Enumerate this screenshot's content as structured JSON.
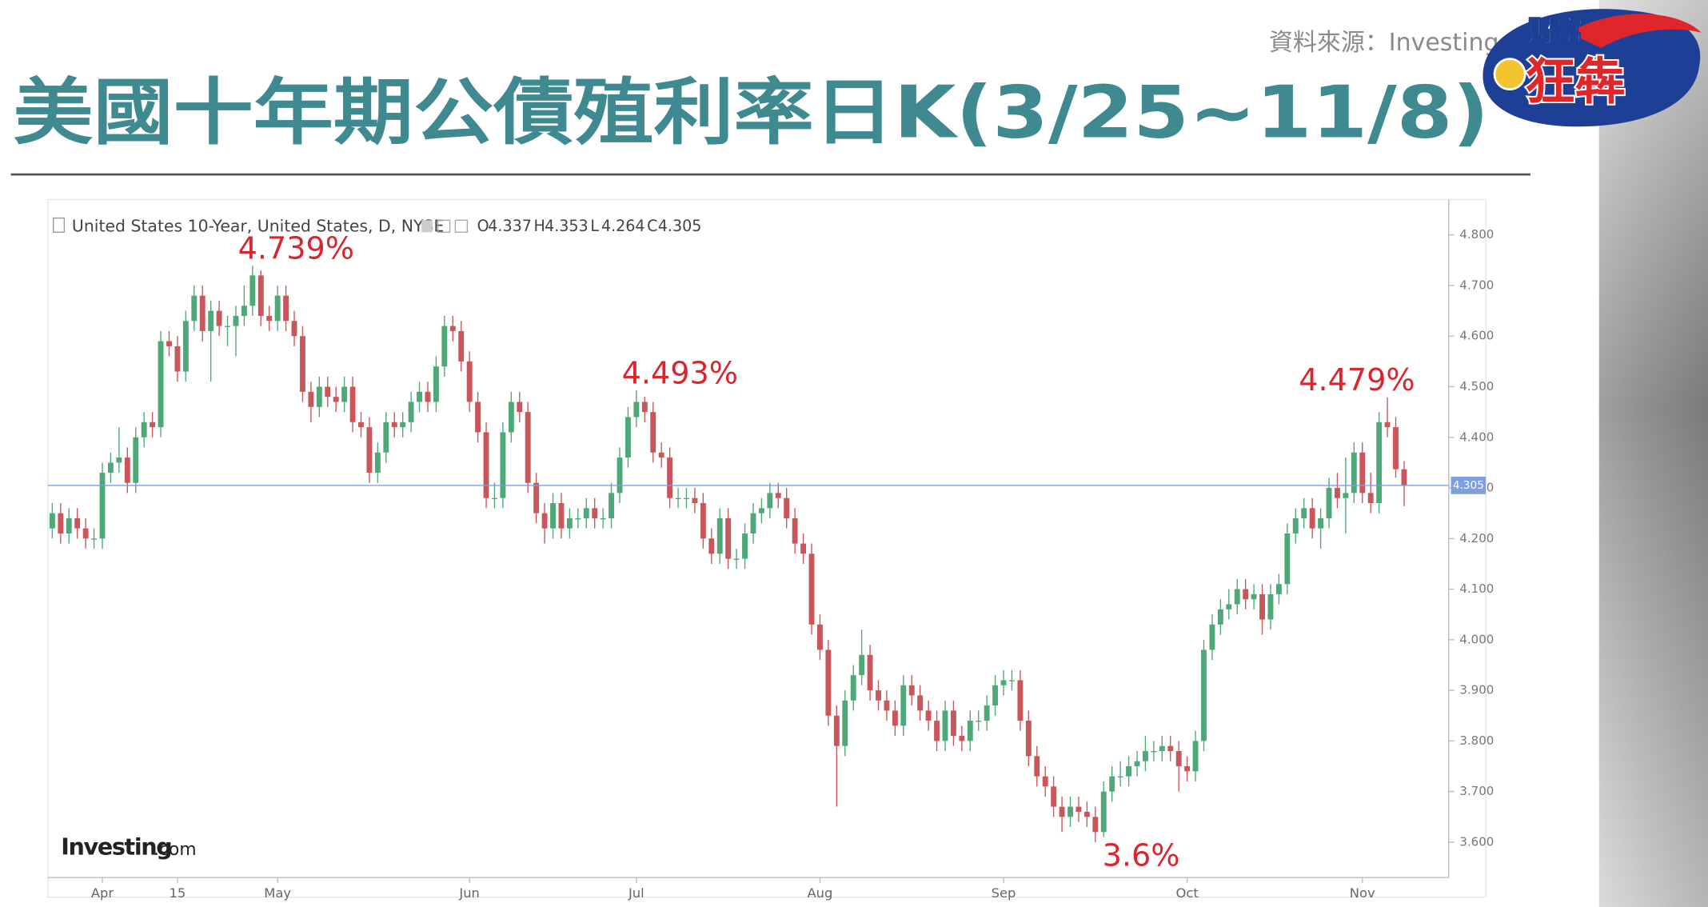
{
  "chart_data": {
    "type": "candlestick",
    "title": "美國十年期公債殖利率日K(3/25~11/8)",
    "source": "資料來源：Investing.com",
    "logo": {
      "top": "財富",
      "bottom": "狂犇"
    },
    "instrument": "United States 10-Year, United States, D, NYSE",
    "ohlc_prefixes": [
      "O",
      "H",
      "L",
      "C"
    ],
    "watermark": {
      "brand": "Investing",
      "suffix": ".com"
    },
    "up_color": "#4fa877",
    "down_color": "#c9565a",
    "price_line_color": "#7d9fe0",
    "annotation_color": "#d9252e",
    "ylim": [
      3.53,
      4.87
    ],
    "yticks": [
      {
        "value": 3.6,
        "label": "3.600"
      },
      {
        "value": 3.7,
        "label": "3.700"
      },
      {
        "value": 3.8,
        "label": "3.800"
      },
      {
        "value": 3.9,
        "label": "3.900"
      },
      {
        "value": 4.0,
        "label": "4.000"
      },
      {
        "value": 4.1,
        "label": "4.100"
      },
      {
        "value": 4.2,
        "label": "4.200"
      },
      {
        "value": 4.3,
        "label": "4.300"
      },
      {
        "value": 4.4,
        "label": "4.400"
      },
      {
        "value": 4.5,
        "label": "4.500"
      },
      {
        "value": 4.6,
        "label": "4.600"
      },
      {
        "value": 4.7,
        "label": "4.700"
      },
      {
        "value": 4.8,
        "label": "4.800"
      }
    ],
    "annotations": [
      {
        "label": "4.739%",
        "value": 4.739,
        "at": "high"
      },
      {
        "label": "4.493%",
        "value": 4.493,
        "at": "high"
      },
      {
        "label": "3.6%",
        "value": 3.6,
        "at": "low"
      },
      {
        "label": "4.479%",
        "value": 4.479,
        "at": "high"
      }
    ],
    "categories": [
      null,
      null,
      null,
      null,
      null,
      null,
      "Apr",
      null,
      null,
      null,
      null,
      null,
      null,
      null,
      null,
      "15",
      null,
      null,
      null,
      null,
      null,
      null,
      null,
      null,
      null,
      null,
      null,
      "May",
      null,
      null,
      null,
      null,
      null,
      null,
      null,
      null,
      null,
      null,
      null,
      null,
      null,
      null,
      null,
      null,
      null,
      null,
      null,
      null,
      null,
      null,
      "Jun",
      null,
      null,
      null,
      null,
      null,
      null,
      null,
      null,
      null,
      null,
      null,
      null,
      null,
      null,
      null,
      null,
      null,
      null,
      null,
      "Jul",
      null,
      null,
      null,
      null,
      null,
      null,
      null,
      null,
      null,
      null,
      null,
      null,
      null,
      null,
      null,
      null,
      null,
      null,
      null,
      null,
      null,
      "Aug",
      null,
      null,
      null,
      null,
      null,
      null,
      null,
      null,
      null,
      null,
      null,
      null,
      null,
      null,
      null,
      null,
      null,
      null,
      null,
      null,
      null,
      "Sep",
      null,
      null,
      null,
      null,
      null,
      null,
      null,
      null,
      null,
      null,
      null,
      null,
      null,
      null,
      null,
      null,
      null,
      null,
      null,
      null,
      null,
      "Oct",
      null,
      null,
      null,
      null,
      null,
      null,
      null,
      null,
      null,
      null,
      null,
      null,
      null,
      null,
      null,
      null,
      null,
      null,
      null,
      null,
      "Nov",
      null,
      null,
      null,
      null,
      null
    ],
    "series": [
      {
        "name": "United States 10-Year",
        "values": [
          [
            4.22,
            4.27,
            4.2,
            4.25
          ],
          [
            4.25,
            4.27,
            4.19,
            4.21
          ],
          [
            4.21,
            4.26,
            4.19,
            4.24
          ],
          [
            4.24,
            4.26,
            4.2,
            4.22
          ],
          [
            4.22,
            4.24,
            4.18,
            4.2
          ],
          [
            4.2,
            4.22,
            4.18,
            4.2
          ],
          [
            4.2,
            4.35,
            4.18,
            4.33
          ],
          [
            4.33,
            4.37,
            4.31,
            4.35
          ],
          [
            4.35,
            4.42,
            4.33,
            4.36
          ],
          [
            4.36,
            4.38,
            4.29,
            4.31
          ],
          [
            4.31,
            4.42,
            4.29,
            4.4
          ],
          [
            4.4,
            4.45,
            4.38,
            4.43
          ],
          [
            4.43,
            4.45,
            4.4,
            4.42
          ],
          [
            4.42,
            4.61,
            4.4,
            4.59
          ],
          [
            4.59,
            4.61,
            4.56,
            4.58
          ],
          [
            4.58,
            4.6,
            4.51,
            4.53
          ],
          [
            4.53,
            4.65,
            4.51,
            4.63
          ],
          [
            4.63,
            4.7,
            4.61,
            4.68
          ],
          [
            4.68,
            4.7,
            4.59,
            4.61
          ],
          [
            4.61,
            4.67,
            4.51,
            4.65
          ],
          [
            4.65,
            4.67,
            4.6,
            4.62
          ],
          [
            4.62,
            4.64,
            4.58,
            4.62
          ],
          [
            4.62,
            4.66,
            4.56,
            4.64
          ],
          [
            4.64,
            4.7,
            4.62,
            4.66
          ],
          [
            4.66,
            4.739,
            4.64,
            4.72
          ],
          [
            4.72,
            4.73,
            4.62,
            4.64
          ],
          [
            4.64,
            4.66,
            4.61,
            4.63
          ],
          [
            4.63,
            4.7,
            4.61,
            4.68
          ],
          [
            4.68,
            4.7,
            4.61,
            4.63
          ],
          [
            4.63,
            4.65,
            4.58,
            4.6
          ],
          [
            4.6,
            4.62,
            4.47,
            4.49
          ],
          [
            4.49,
            4.51,
            4.43,
            4.46
          ],
          [
            4.46,
            4.52,
            4.44,
            4.5
          ],
          [
            4.5,
            4.52,
            4.46,
            4.48
          ],
          [
            4.48,
            4.5,
            4.45,
            4.47
          ],
          [
            4.47,
            4.52,
            4.45,
            4.5
          ],
          [
            4.5,
            4.52,
            4.41,
            4.43
          ],
          [
            4.43,
            4.45,
            4.4,
            4.42
          ],
          [
            4.42,
            4.44,
            4.31,
            4.33
          ],
          [
            4.33,
            4.39,
            4.31,
            4.37
          ],
          [
            4.37,
            4.45,
            4.35,
            4.43
          ],
          [
            4.43,
            4.45,
            4.4,
            4.42
          ],
          [
            4.42,
            4.45,
            4.4,
            4.43
          ],
          [
            4.43,
            4.49,
            4.41,
            4.47
          ],
          [
            4.47,
            4.51,
            4.45,
            4.49
          ],
          [
            4.49,
            4.51,
            4.45,
            4.47
          ],
          [
            4.47,
            4.56,
            4.45,
            4.54
          ],
          [
            4.54,
            4.64,
            4.52,
            4.62
          ],
          [
            4.62,
            4.64,
            4.59,
            4.61
          ],
          [
            4.61,
            4.63,
            4.53,
            4.55
          ],
          [
            4.55,
            4.57,
            4.45,
            4.47
          ],
          [
            4.47,
            4.49,
            4.39,
            4.41
          ],
          [
            4.41,
            4.43,
            4.26,
            4.28
          ],
          [
            4.28,
            4.31,
            4.26,
            4.28
          ],
          [
            4.28,
            4.43,
            4.26,
            4.41
          ],
          [
            4.41,
            4.49,
            4.39,
            4.47
          ],
          [
            4.47,
            4.49,
            4.43,
            4.45
          ],
          [
            4.45,
            4.47,
            4.29,
            4.31
          ],
          [
            4.31,
            4.33,
            4.23,
            4.25
          ],
          [
            4.25,
            4.27,
            4.19,
            4.22
          ],
          [
            4.22,
            4.29,
            4.2,
            4.27
          ],
          [
            4.27,
            4.29,
            4.2,
            4.22
          ],
          [
            4.22,
            4.26,
            4.2,
            4.24
          ],
          [
            4.24,
            4.26,
            4.22,
            4.24
          ],
          [
            4.24,
            4.28,
            4.22,
            4.26
          ],
          [
            4.26,
            4.28,
            4.22,
            4.24
          ],
          [
            4.24,
            4.26,
            4.22,
            4.24
          ],
          [
            4.24,
            4.31,
            4.22,
            4.29
          ],
          [
            4.29,
            4.38,
            4.27,
            4.36
          ],
          [
            4.36,
            4.46,
            4.34,
            4.44
          ],
          [
            4.44,
            4.493,
            4.42,
            4.47
          ],
          [
            4.47,
            4.48,
            4.43,
            4.45
          ],
          [
            4.45,
            4.47,
            4.35,
            4.37
          ],
          [
            4.37,
            4.39,
            4.34,
            4.36
          ],
          [
            4.36,
            4.38,
            4.26,
            4.28
          ],
          [
            4.28,
            4.3,
            4.26,
            4.28
          ],
          [
            4.28,
            4.3,
            4.26,
            4.28
          ],
          [
            4.28,
            4.3,
            4.25,
            4.27
          ],
          [
            4.27,
            4.29,
            4.18,
            4.2
          ],
          [
            4.2,
            4.22,
            4.15,
            4.17
          ],
          [
            4.17,
            4.26,
            4.15,
            4.24
          ],
          [
            4.24,
            4.26,
            4.14,
            4.16
          ],
          [
            4.16,
            4.18,
            4.14,
            4.16
          ],
          [
            4.16,
            4.23,
            4.14,
            4.21
          ],
          [
            4.21,
            4.27,
            4.19,
            4.25
          ],
          [
            4.25,
            4.28,
            4.23,
            4.26
          ],
          [
            4.26,
            4.31,
            4.24,
            4.29
          ],
          [
            4.29,
            4.31,
            4.26,
            4.28
          ],
          [
            4.28,
            4.3,
            4.22,
            4.24
          ],
          [
            4.24,
            4.26,
            4.17,
            4.19
          ],
          [
            4.19,
            4.21,
            4.15,
            4.17
          ],
          [
            4.17,
            4.19,
            4.01,
            4.03
          ],
          [
            4.03,
            4.05,
            3.96,
            3.98
          ],
          [
            3.98,
            4.0,
            3.83,
            3.85
          ],
          [
            3.85,
            3.87,
            3.67,
            3.79
          ],
          [
            3.79,
            3.9,
            3.77,
            3.88
          ],
          [
            3.88,
            3.95,
            3.86,
            3.93
          ],
          [
            3.93,
            4.02,
            3.91,
            3.97
          ],
          [
            3.97,
            3.99,
            3.88,
            3.9
          ],
          [
            3.9,
            3.92,
            3.86,
            3.88
          ],
          [
            3.88,
            3.9,
            3.84,
            3.86
          ],
          [
            3.86,
            3.88,
            3.81,
            3.83
          ],
          [
            3.83,
            3.93,
            3.81,
            3.91
          ],
          [
            3.91,
            3.93,
            3.87,
            3.89
          ],
          [
            3.89,
            3.91,
            3.84,
            3.86
          ],
          [
            3.86,
            3.88,
            3.82,
            3.84
          ],
          [
            3.84,
            3.86,
            3.78,
            3.8
          ],
          [
            3.8,
            3.88,
            3.78,
            3.86
          ],
          [
            3.86,
            3.88,
            3.79,
            3.81
          ],
          [
            3.81,
            3.83,
            3.78,
            3.8
          ],
          [
            3.8,
            3.86,
            3.78,
            3.84
          ],
          [
            3.84,
            3.86,
            3.82,
            3.84
          ],
          [
            3.84,
            3.89,
            3.82,
            3.87
          ],
          [
            3.87,
            3.93,
            3.85,
            3.91
          ],
          [
            3.91,
            3.94,
            3.89,
            3.92
          ],
          [
            3.92,
            3.94,
            3.9,
            3.92
          ],
          [
            3.92,
            3.94,
            3.82,
            3.84
          ],
          [
            3.84,
            3.86,
            3.75,
            3.77
          ],
          [
            3.77,
            3.79,
            3.71,
            3.73
          ],
          [
            3.73,
            3.75,
            3.69,
            3.71
          ],
          [
            3.71,
            3.73,
            3.65,
            3.67
          ],
          [
            3.67,
            3.69,
            3.62,
            3.65
          ],
          [
            3.65,
            3.69,
            3.63,
            3.67
          ],
          [
            3.67,
            3.69,
            3.64,
            3.66
          ],
          [
            3.66,
            3.68,
            3.63,
            3.65
          ],
          [
            3.65,
            3.67,
            3.6,
            3.62
          ],
          [
            3.62,
            3.72,
            3.61,
            3.7
          ],
          [
            3.7,
            3.75,
            3.68,
            3.73
          ],
          [
            3.73,
            3.76,
            3.71,
            3.73
          ],
          [
            3.73,
            3.77,
            3.71,
            3.75
          ],
          [
            3.75,
            3.78,
            3.73,
            3.76
          ],
          [
            3.76,
            3.81,
            3.74,
            3.78
          ],
          [
            3.78,
            3.8,
            3.76,
            3.78
          ],
          [
            3.78,
            3.81,
            3.76,
            3.79
          ],
          [
            3.79,
            3.81,
            3.76,
            3.78
          ],
          [
            3.78,
            3.8,
            3.7,
            3.75
          ],
          [
            3.75,
            3.77,
            3.72,
            3.74
          ],
          [
            3.74,
            3.82,
            3.72,
            3.8
          ],
          [
            3.8,
            4.0,
            3.78,
            3.98
          ],
          [
            3.98,
            4.05,
            3.96,
            4.03
          ],
          [
            4.03,
            4.08,
            4.01,
            4.06
          ],
          [
            4.06,
            4.1,
            4.04,
            4.07
          ],
          [
            4.07,
            4.12,
            4.05,
            4.1
          ],
          [
            4.1,
            4.12,
            4.06,
            4.08
          ],
          [
            4.08,
            4.11,
            4.06,
            4.09
          ],
          [
            4.09,
            4.11,
            4.01,
            4.04
          ],
          [
            4.04,
            4.11,
            4.02,
            4.09
          ],
          [
            4.09,
            4.13,
            4.07,
            4.11
          ],
          [
            4.11,
            4.23,
            4.09,
            4.21
          ],
          [
            4.21,
            4.26,
            4.19,
            4.24
          ],
          [
            4.24,
            4.28,
            4.22,
            4.26
          ],
          [
            4.26,
            4.28,
            4.2,
            4.22
          ],
          [
            4.22,
            4.26,
            4.18,
            4.24
          ],
          [
            4.24,
            4.32,
            4.22,
            4.3
          ],
          [
            4.3,
            4.33,
            4.26,
            4.28
          ],
          [
            4.28,
            4.36,
            4.21,
            4.29
          ],
          [
            4.29,
            4.39,
            4.27,
            4.37
          ],
          [
            4.37,
            4.39,
            4.27,
            4.29
          ],
          [
            4.29,
            4.33,
            4.25,
            4.27
          ],
          [
            4.27,
            4.45,
            4.25,
            4.43
          ],
          [
            4.43,
            4.479,
            4.4,
            4.42
          ],
          [
            4.42,
            4.44,
            4.32,
            4.337
          ],
          [
            4.337,
            4.353,
            4.264,
            4.305
          ]
        ]
      }
    ]
  }
}
